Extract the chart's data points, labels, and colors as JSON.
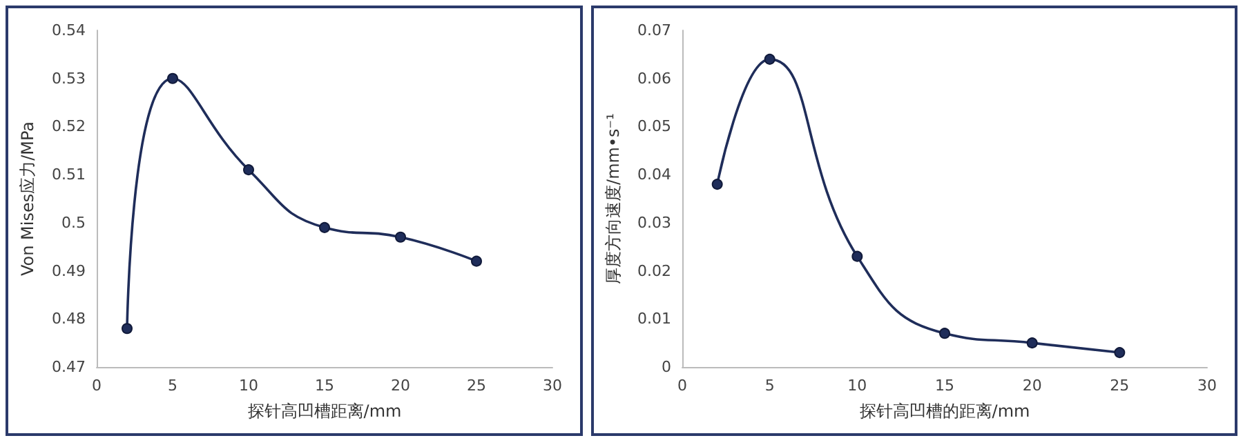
{
  "chart_data": [
    {
      "type": "line",
      "xlabel": "探针高凹槽距离/mm",
      "ylabel": "Von Mises应力/MPa",
      "x": [
        2,
        5,
        10,
        15,
        20,
        25
      ],
      "series": [
        {
          "color": "#1f2d5a",
          "values": [
            0.478,
            0.53,
            0.511,
            0.499,
            0.497,
            0.492
          ]
        }
      ],
      "xlim": [
        0,
        30
      ],
      "xticks": [
        0,
        5,
        10,
        15,
        20,
        25,
        30
      ],
      "ylim": [
        0.47,
        0.54
      ],
      "yticks": [
        0.47,
        0.48,
        0.49,
        0.5,
        0.51,
        0.52,
        0.53,
        0.54
      ],
      "grid": false,
      "marker": "circle",
      "line_style": "solid"
    },
    {
      "type": "line",
      "xlabel": "探针高凹槽的距离/mm",
      "ylabel": "厚度方向速度/mm•s⁻¹",
      "x": [
        2,
        5,
        10,
        15,
        20,
        25
      ],
      "series": [
        {
          "color": "#1f2d5a",
          "values": [
            0.038,
            0.064,
            0.023,
            0.007,
            0.005,
            0.003
          ]
        }
      ],
      "xlim": [
        0,
        30
      ],
      "xticks": [
        0,
        5,
        10,
        15,
        20,
        25,
        30
      ],
      "ylim": [
        0,
        0.07
      ],
      "yticks": [
        0,
        0.01,
        0.02,
        0.03,
        0.04,
        0.05,
        0.06,
        0.07
      ],
      "grid": false,
      "marker": "circle",
      "line_style": "solid"
    }
  ]
}
